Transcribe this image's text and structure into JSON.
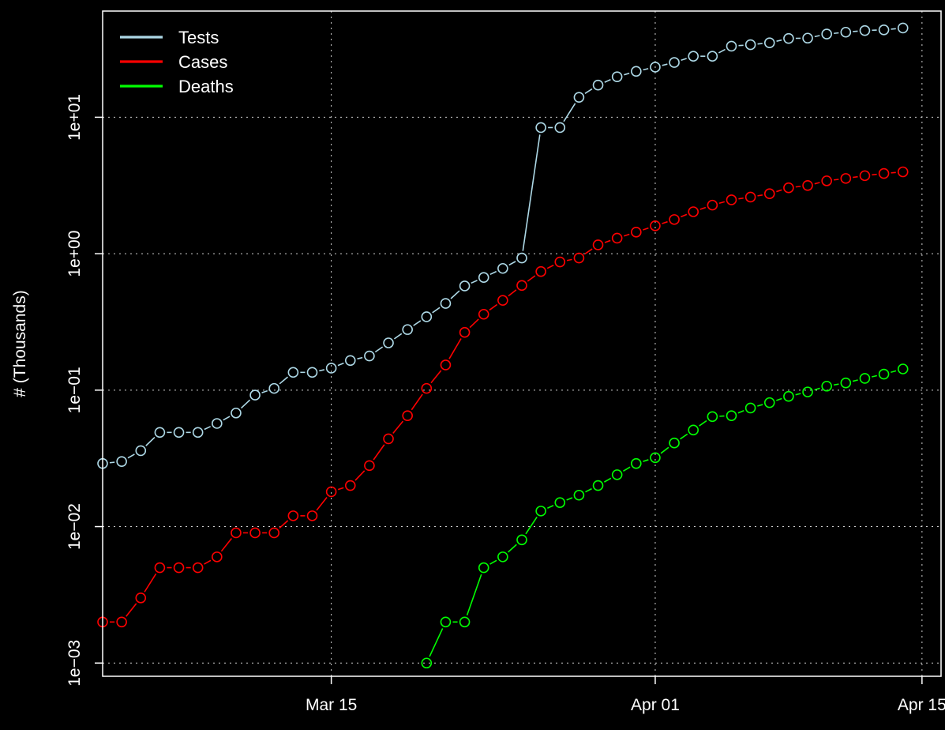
{
  "chart_data": {
    "type": "scatter",
    "title": "",
    "xlabel": "",
    "ylabel": "# (Thousands)",
    "y_scale": "log10",
    "ylim": [
      0.0008,
      60
    ],
    "xlim": [
      "2020-03-03",
      "2020-04-16"
    ],
    "grid": true,
    "legend_position": "top-left",
    "background": "#000000",
    "foreground": "#ffffff",
    "x_ticks": [
      {
        "date": "2020-03-15",
        "label": "Mar 15"
      },
      {
        "date": "2020-04-01",
        "label": "Apr 01"
      },
      {
        "date": "2020-04-15",
        "label": "Apr 15"
      }
    ],
    "y_ticks": [
      {
        "value": 0.001,
        "label": "1e−03"
      },
      {
        "value": 0.01,
        "label": "1e−02"
      },
      {
        "value": 0.1,
        "label": "1e−01"
      },
      {
        "value": 1,
        "label": "1e+00"
      },
      {
        "value": 10,
        "label": "1e+01"
      }
    ],
    "x": [
      "2020-03-03",
      "2020-03-04",
      "2020-03-05",
      "2020-03-06",
      "2020-03-07",
      "2020-03-08",
      "2020-03-09",
      "2020-03-10",
      "2020-03-11",
      "2020-03-12",
      "2020-03-13",
      "2020-03-14",
      "2020-03-15",
      "2020-03-16",
      "2020-03-17",
      "2020-03-18",
      "2020-03-19",
      "2020-03-20",
      "2020-03-21",
      "2020-03-22",
      "2020-03-23",
      "2020-03-24",
      "2020-03-25",
      "2020-03-26",
      "2020-03-27",
      "2020-03-28",
      "2020-03-29",
      "2020-03-30",
      "2020-03-31",
      "2020-04-01",
      "2020-04-02",
      "2020-04-03",
      "2020-04-04",
      "2020-04-05",
      "2020-04-06",
      "2020-04-07",
      "2020-04-08",
      "2020-04-09",
      "2020-04-10",
      "2020-04-11",
      "2020-04-12",
      "2020-04-13",
      "2020-04-14",
      "2020-04-15"
    ],
    "series": [
      {
        "name": "Tests",
        "color": "#add8e6",
        "values": [
          0.029,
          0.03,
          0.036,
          0.049,
          0.049,
          0.049,
          0.057,
          0.068,
          0.092,
          0.103,
          0.135,
          0.135,
          0.145,
          0.165,
          0.178,
          0.222,
          0.278,
          0.345,
          0.432,
          0.58,
          0.67,
          0.78,
          0.93,
          8.4,
          8.4,
          14,
          17.2,
          19.8,
          21.7,
          23.3,
          25.2,
          28,
          28,
          33.2,
          34,
          35.1,
          37.8,
          38,
          40.7,
          42,
          43.2,
          43.7,
          45.1,
          null
        ]
      },
      {
        "name": "Cases",
        "color": "#ff0000",
        "values": [
          0.002,
          0.002,
          0.003,
          0.005,
          0.005,
          0.005,
          0.006,
          0.009,
          0.009,
          0.009,
          0.012,
          0.012,
          0.018,
          0.02,
          0.028,
          0.044,
          0.065,
          0.103,
          0.153,
          0.265,
          0.36,
          0.455,
          0.585,
          0.74,
          0.87,
          0.93,
          1.16,
          1.3,
          1.44,
          1.6,
          1.78,
          2.03,
          2.27,
          2.48,
          2.6,
          2.75,
          3.04,
          3.16,
          3.42,
          3.56,
          3.73,
          3.87,
          3.98,
          null
        ]
      },
      {
        "name": "Deaths",
        "color": "#00ff00",
        "values": [
          null,
          null,
          null,
          null,
          null,
          null,
          null,
          null,
          null,
          null,
          null,
          null,
          null,
          null,
          null,
          null,
          null,
          0.001,
          0.002,
          0.002,
          0.005,
          0.006,
          0.008,
          0.013,
          0.015,
          0.017,
          0.02,
          0.024,
          0.029,
          0.032,
          0.041,
          0.051,
          0.064,
          0.065,
          0.074,
          0.081,
          0.09,
          0.097,
          0.107,
          0.113,
          0.122,
          0.131,
          0.143,
          null
        ]
      }
    ]
  }
}
